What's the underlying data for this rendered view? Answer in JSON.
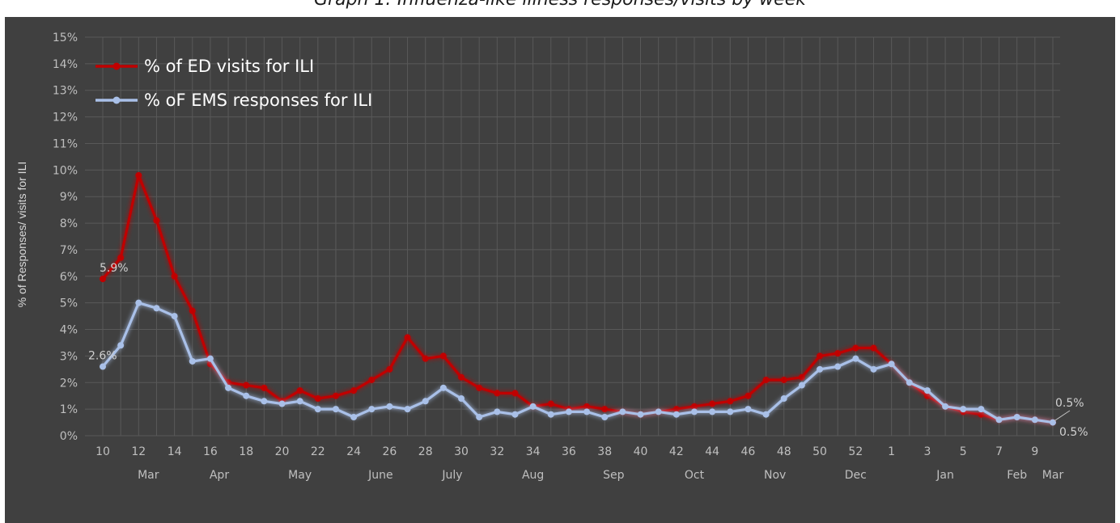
{
  "chart_data": {
    "type": "line",
    "title": "",
    "ylabel": "% of Responses/ visits for ILI",
    "ylim": [
      0,
      15
    ],
    "y_ticks": [
      "0%",
      "1%",
      "2%",
      "3%",
      "4%",
      "5%",
      "6%",
      "7%",
      "8%",
      "9%",
      "10%",
      "11%",
      "12%",
      "13%",
      "14%",
      "15%"
    ],
    "x_tick_labels": [
      "10",
      "12",
      "14",
      "16",
      "18",
      "20",
      "22",
      "24",
      "26",
      "28",
      "30",
      "32",
      "34",
      "36",
      "38",
      "40",
      "42",
      "44",
      "46",
      "48",
      "50",
      "52",
      "1",
      "3",
      "5",
      "7",
      "9"
    ],
    "month_labels": [
      "Mar",
      "Apr",
      "May",
      "June",
      "July",
      "Aug",
      "Sep",
      "Oct",
      "Nov",
      "Dec",
      "Jan",
      "Feb",
      "Mar"
    ],
    "x": [
      "10",
      "11",
      "12",
      "13",
      "14",
      "15",
      "16",
      "17",
      "18",
      "19",
      "20",
      "21",
      "22",
      "23",
      "24",
      "25",
      "26",
      "27",
      "28",
      "29",
      "30",
      "31",
      "32",
      "33",
      "34",
      "35",
      "36",
      "37",
      "38",
      "39",
      "40",
      "41",
      "42",
      "43",
      "44",
      "45",
      "46",
      "47",
      "48",
      "49",
      "50",
      "51",
      "52",
      "53",
      "1",
      "2",
      "3",
      "4",
      "5",
      "6",
      "7",
      "8",
      "9",
      "10"
    ],
    "grid": true,
    "legend_position": "top-left",
    "series": [
      {
        "name": "% of ED visits for ILI",
        "color": "#c00000",
        "values": [
          5.9,
          6.7,
          9.8,
          8.1,
          6.0,
          4.7,
          2.7,
          2.0,
          1.9,
          1.8,
          1.3,
          1.7,
          1.4,
          1.5,
          1.7,
          2.1,
          2.5,
          3.7,
          2.9,
          3.0,
          2.2,
          1.8,
          1.6,
          1.6,
          1.1,
          1.2,
          1.0,
          1.1,
          1.0,
          0.9,
          0.8,
          0.9,
          1.0,
          1.1,
          1.2,
          1.3,
          1.5,
          2.1,
          2.1,
          2.2,
          3.0,
          3.1,
          3.3,
          3.3,
          2.7,
          2.0,
          1.5,
          1.1,
          0.9,
          0.8,
          0.6,
          0.7,
          0.6,
          0.5
        ]
      },
      {
        "name": "% oF EMS responses for ILI",
        "color": "#a9c0e8",
        "values": [
          2.6,
          3.4,
          5.0,
          4.8,
          4.5,
          2.8,
          2.9,
          1.8,
          1.5,
          1.3,
          1.2,
          1.3,
          1.0,
          1.0,
          0.7,
          1.0,
          1.1,
          1.0,
          1.3,
          1.8,
          1.4,
          0.7,
          0.9,
          0.8,
          1.1,
          0.8,
          0.9,
          0.9,
          0.7,
          0.9,
          0.8,
          0.9,
          0.8,
          0.9,
          0.9,
          0.9,
          1.0,
          0.8,
          1.4,
          1.9,
          2.5,
          2.6,
          2.9,
          2.5,
          2.7,
          2.0,
          1.7,
          1.1,
          1.0,
          1.0,
          0.6,
          0.7,
          0.6,
          0.5
        ]
      }
    ],
    "data_labels": {
      "ed_first": "5.9%",
      "ems_first": "2.6%",
      "ed_last": "0.5%",
      "ems_last": "0.5%"
    }
  },
  "cut_title": "Graph 1: Influenza-like illness responses/visits by week",
  "colors": {
    "background": "#404040",
    "grid": "#595959"
  }
}
